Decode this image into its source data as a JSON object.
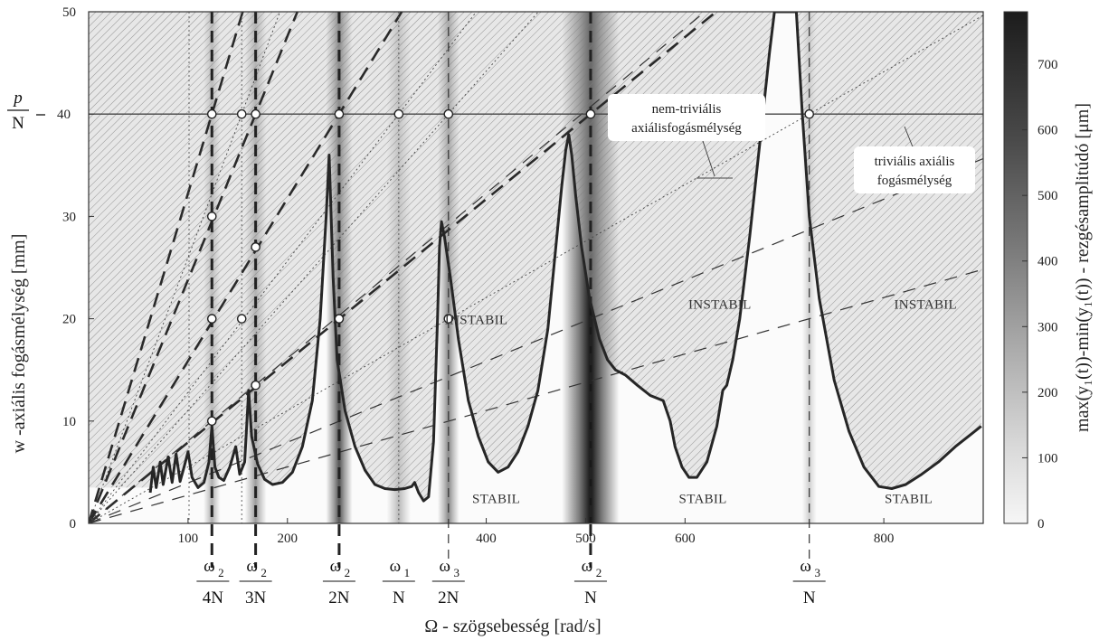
{
  "chart_data": {
    "type": "line",
    "xlabel": "Ω - szögsebesség [rad/s]",
    "ylabel": "w -axiális fogásmélység [mm]",
    "colorbar_label": "max(y₁(t))-min(y₁(t)) - rezgésamplitúdó [μm]",
    "xlim": [
      0,
      900
    ],
    "ylim": [
      0,
      50
    ],
    "x_ticks": [
      100,
      200,
      400,
      500,
      600,
      800
    ],
    "y_ticks": [
      0,
      10,
      20,
      30,
      40,
      50
    ],
    "colorbar_ticks": [
      0,
      100,
      200,
      300,
      400,
      500,
      600,
      700
    ],
    "colorbar_range": [
      0,
      780
    ],
    "p_over_N": {
      "y": 40,
      "num": "p",
      "den": "N"
    },
    "region_labels": [
      {
        "text": "INSTABIL",
        "x": 390,
        "y": 19.5
      },
      {
        "text": "INSTABIL",
        "x": 635,
        "y": 21
      },
      {
        "text": "INSTABIL",
        "x": 842,
        "y": 21
      },
      {
        "text": "STABIL",
        "x": 410,
        "y": 2
      },
      {
        "text": "STABIL",
        "x": 618,
        "y": 2
      },
      {
        "text": "STABIL",
        "x": 825,
        "y": 2
      }
    ],
    "annotations": [
      {
        "lines": [
          "nem-triviális",
          "axiálisfogásmélység"
        ]
      },
      {
        "lines": [
          "triviális axiális",
          "fogásmélység"
        ]
      }
    ],
    "resonance_fractions": [
      {
        "num": "ω",
        "sub": "2",
        "den": "4N",
        "x": 125
      },
      {
        "num": "ω",
        "sub": "2",
        "den": "3N",
        "x": 168
      },
      {
        "num": "ω",
        "sub": "2",
        "den": "2N",
        "x": 252
      },
      {
        "num": "ω",
        "sub": "1",
        "den": "N",
        "x": 312
      },
      {
        "num": "ω",
        "sub": "3",
        "den": "2N",
        "x": 362
      },
      {
        "num": "ω",
        "sub": "2",
        "den": "N",
        "x": 505
      },
      {
        "num": "ω",
        "sub": "3",
        "den": "N",
        "x": 725
      }
    ],
    "boundary_curve": [
      [
        62,
        3
      ],
      [
        65,
        5.5
      ],
      [
        68,
        3.5
      ],
      [
        72,
        6
      ],
      [
        75,
        3.8
      ],
      [
        80,
        6.5
      ],
      [
        84,
        4
      ],
      [
        88,
        6.8
      ],
      [
        92,
        4.1
      ],
      [
        96,
        5.5
      ],
      [
        100,
        7
      ],
      [
        104,
        4.5
      ],
      [
        110,
        3.5
      ],
      [
        116,
        4
      ],
      [
        121,
        6
      ],
      [
        124,
        9.5
      ],
      [
        127,
        5.5
      ],
      [
        131,
        4.5
      ],
      [
        136,
        4.2
      ],
      [
        142,
        5.5
      ],
      [
        148,
        7.5
      ],
      [
        152,
        4.8
      ],
      [
        157,
        6
      ],
      [
        161,
        13
      ],
      [
        164,
        8.5
      ],
      [
        170,
        5.8
      ],
      [
        177,
        4.3
      ],
      [
        185,
        3.8
      ],
      [
        195,
        4
      ],
      [
        205,
        5
      ],
      [
        215,
        7.5
      ],
      [
        225,
        12
      ],
      [
        233,
        20
      ],
      [
        239,
        30
      ],
      [
        242,
        36
      ],
      [
        246,
        24
      ],
      [
        250,
        16
      ],
      [
        258,
        11
      ],
      [
        268,
        7.5
      ],
      [
        278,
        5.2
      ],
      [
        288,
        3.8
      ],
      [
        298,
        3.4
      ],
      [
        308,
        3.3
      ],
      [
        318,
        3.4
      ],
      [
        325,
        3.6
      ],
      [
        328,
        4
      ],
      [
        332,
        3
      ],
      [
        337,
        2.2
      ],
      [
        342,
        2.6
      ],
      [
        347,
        8
      ],
      [
        351,
        20
      ],
      [
        353,
        27
      ],
      [
        355,
        29.5
      ],
      [
        358,
        28
      ],
      [
        364,
        24
      ],
      [
        372,
        18
      ],
      [
        382,
        12
      ],
      [
        392,
        8.5
      ],
      [
        402,
        6
      ],
      [
        412,
        5
      ],
      [
        422,
        5.5
      ],
      [
        432,
        7
      ],
      [
        442,
        9.5
      ],
      [
        452,
        13
      ],
      [
        462,
        19
      ],
      [
        470,
        27
      ],
      [
        476,
        33
      ],
      [
        480,
        36.5
      ],
      [
        483,
        38
      ],
      [
        486,
        36
      ],
      [
        490,
        32
      ],
      [
        496,
        27
      ],
      [
        504,
        22
      ],
      [
        514,
        18
      ],
      [
        522,
        16
      ],
      [
        530,
        15
      ],
      [
        540,
        14.5
      ],
      [
        552,
        13.5
      ],
      [
        565,
        12.5
      ],
      [
        578,
        12
      ],
      [
        585,
        10
      ],
      [
        590,
        7.5
      ],
      [
        597,
        5.5
      ],
      [
        604,
        4.5
      ],
      [
        612,
        4.5
      ],
      [
        622,
        6
      ],
      [
        632,
        9.5
      ],
      [
        638,
        13
      ],
      [
        642,
        13.5
      ],
      [
        648,
        16
      ],
      [
        655,
        20
      ],
      [
        665,
        28
      ],
      [
        675,
        37
      ],
      [
        685,
        46
      ],
      [
        690,
        50
      ],
      [
        712,
        50
      ],
      [
        718,
        40
      ],
      [
        725,
        30
      ],
      [
        735,
        22
      ],
      [
        750,
        14
      ],
      [
        765,
        9
      ],
      [
        780,
        5.5
      ],
      [
        795,
        3.6
      ],
      [
        808,
        3.4
      ],
      [
        822,
        3.8
      ],
      [
        838,
        4.8
      ],
      [
        855,
        6
      ],
      [
        872,
        7.5
      ],
      [
        885,
        8.5
      ],
      [
        898,
        9.5
      ]
    ],
    "rays_to_p40": [
      {
        "x_at_40": 124,
        "label": "ω2/4N"
      },
      {
        "x_at_40": 168,
        "label": "ω2/3N"
      },
      {
        "x_at_40": 252,
        "label": "ω2/2N"
      },
      {
        "x_at_40": 505,
        "label": "ω2/N"
      }
    ],
    "rays_thin": [
      {
        "x_at_40": 154
      },
      {
        "x_at_40": 312
      },
      {
        "x_at_40": 362
      },
      {
        "x_at_40": 725
      }
    ],
    "markers": [
      [
        124,
        40
      ],
      [
        154,
        40
      ],
      [
        168,
        40
      ],
      [
        252,
        40
      ],
      [
        312,
        40
      ],
      [
        362,
        40
      ],
      [
        505,
        40
      ],
      [
        725,
        40
      ],
      [
        124,
        30
      ],
      [
        124,
        20
      ],
      [
        124,
        10
      ],
      [
        154,
        20
      ],
      [
        168,
        27
      ],
      [
        168,
        13.5
      ],
      [
        252,
        20
      ],
      [
        362,
        20
      ]
    ],
    "resonance_lines": [
      {
        "x": 124,
        "style": "thick"
      },
      {
        "x": 168,
        "style": "thick"
      },
      {
        "x": 252,
        "style": "thick"
      },
      {
        "x": 505,
        "style": "thick"
      },
      {
        "x": 312,
        "style": "dotted"
      },
      {
        "x": 154,
        "style": "dotted"
      },
      {
        "x": 101,
        "style": "dotted"
      },
      {
        "x": 362,
        "style": "thin"
      },
      {
        "x": 725,
        "style": "thin"
      }
    ],
    "amplitude_bands": [
      {
        "x": 505,
        "width": 24,
        "peak": 780
      },
      {
        "x": 252,
        "width": 11,
        "peak": 560
      },
      {
        "x": 362,
        "width": 9,
        "peak": 380
      },
      {
        "x": 168,
        "width": 9,
        "peak": 320
      },
      {
        "x": 124,
        "width": 7,
        "peak": 260
      },
      {
        "x": 312,
        "width": 10,
        "peak": 220
      },
      {
        "x": 725,
        "width": 6,
        "peak": 150
      }
    ],
    "grid": false,
    "colors": {
      "curve": "#2b2b2b",
      "hatch": "#8a8a8a",
      "background": "#ffffff"
    }
  }
}
